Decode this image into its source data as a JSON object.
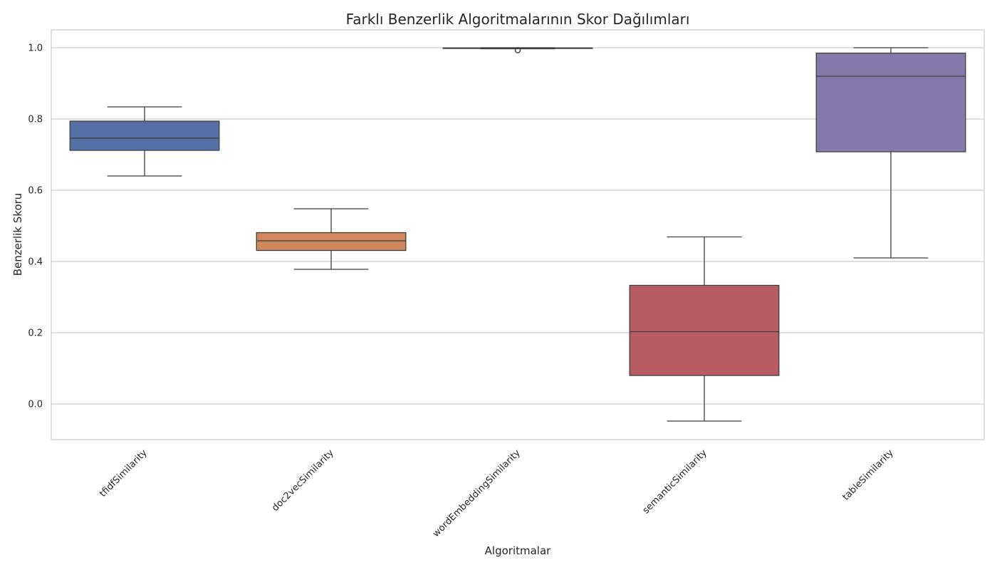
{
  "chart_data": {
    "type": "box",
    "title": "Farklı Benzerlik Algoritmalarının Skor Dağılımları",
    "xlabel": "Algoritmalar",
    "ylabel": "Benzerlik Skoru",
    "ylim": [
      -0.1,
      1.05
    ],
    "yticks": [
      0.0,
      0.2,
      0.4,
      0.6,
      0.8,
      1.0
    ],
    "ytick_labels": [
      "0.0",
      "0.2",
      "0.4",
      "0.6",
      "0.8",
      "1.0"
    ],
    "grid": "horizontal",
    "categories": [
      "tfidfSimilarity",
      "doc2vecSimilarity",
      "wordEmbeddingSimilarity",
      "semanticSimilarity",
      "tableSimilarity"
    ],
    "boxes": [
      {
        "name": "tfidfSimilarity",
        "whisker_low": 0.64,
        "q1": 0.712,
        "median": 0.746,
        "q3": 0.794,
        "whisker_high": 0.834,
        "outliers": [],
        "color": "#5470a4"
      },
      {
        "name": "doc2vecSimilarity",
        "whisker_low": 0.378,
        "q1": 0.431,
        "median": 0.458,
        "q3": 0.481,
        "whisker_high": 0.548,
        "outliers": [],
        "color": "#d1885c"
      },
      {
        "name": "wordEmbeddingSimilarity",
        "whisker_low": 0.997,
        "q1": 0.998,
        "median": 0.999,
        "q3": 0.9995,
        "whisker_high": 1.0,
        "outliers": [
          0.993
        ],
        "color": "#5f9e6e"
      },
      {
        "name": "semanticSimilarity",
        "whisker_low": -0.048,
        "q1": 0.08,
        "median": 0.203,
        "q3": 0.333,
        "whisker_high": 0.469,
        "outliers": [],
        "color": "#b75c61"
      },
      {
        "name": "tableSimilarity",
        "whisker_low": 0.41,
        "q1": 0.708,
        "median": 0.92,
        "q3": 0.985,
        "whisker_high": 1.0,
        "outliers": [],
        "color": "#8579a9"
      }
    ]
  }
}
